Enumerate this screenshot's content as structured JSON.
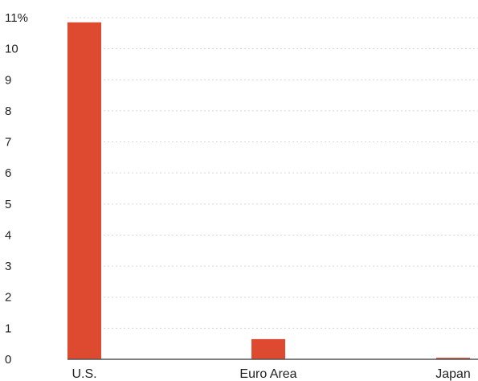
{
  "chart_data": {
    "type": "bar",
    "categories": [
      "U.S.",
      "Euro Area",
      "Japan"
    ],
    "values": [
      10.85,
      0.65,
      0.05
    ],
    "y_tick_labels": [
      "0",
      "1",
      "2",
      "3",
      "4",
      "5",
      "6",
      "7",
      "8",
      "9",
      "10",
      "11%"
    ],
    "ylim": [
      0,
      11
    ],
    "grid": true,
    "bar_color": "#dd4a30",
    "title": "",
    "xlabel": "",
    "ylabel": ""
  }
}
